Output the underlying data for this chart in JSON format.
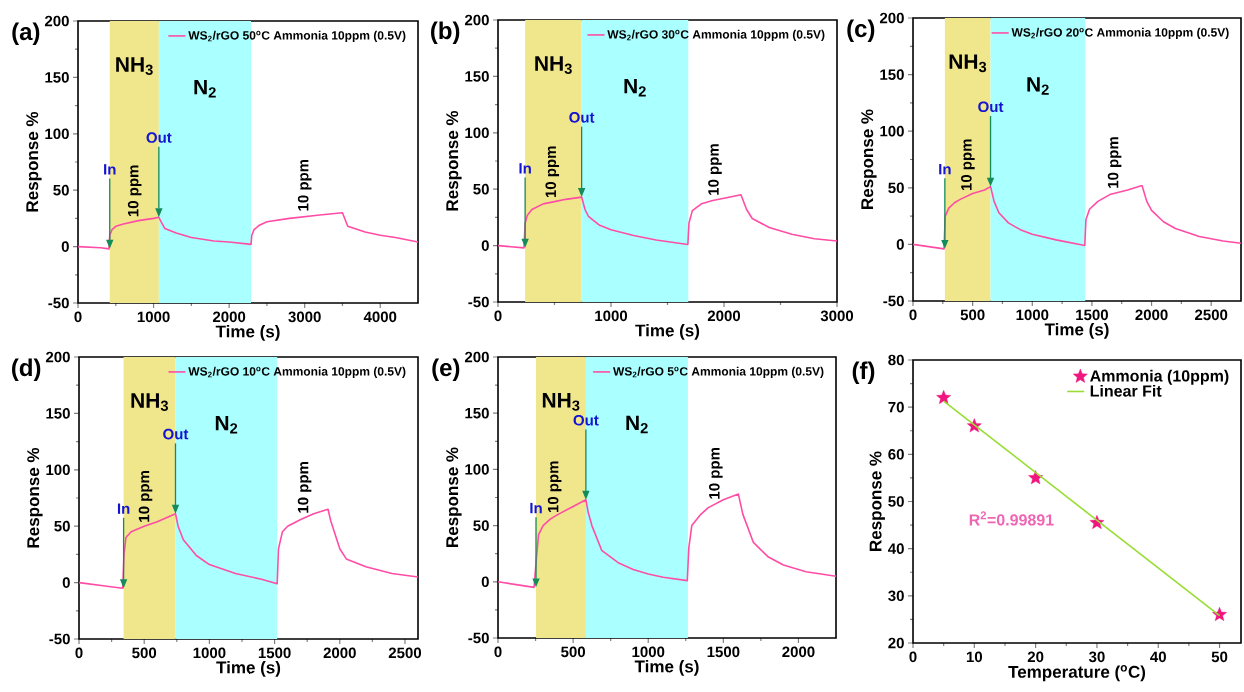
{
  "chart_data": [
    {
      "type": "line",
      "title": "(a)",
      "xlabel": "Time (s)",
      "ylabel": "Response %",
      "xlim": [
        0,
        4500
      ],
      "ylim": [
        -50,
        200
      ],
      "xticks": [
        0,
        1000,
        2000,
        3000,
        4000
      ],
      "yticks": [
        -50,
        0,
        50,
        100,
        150,
        200
      ],
      "legend": "top right",
      "series": [
        {
          "name": "WS$_{2}$/rGO 50$^{o}$C Ammonia 10ppm (0.5V)",
          "color": "#ff4da6",
          "x": [
            0,
            300,
            410,
            420,
            450,
            500,
            600,
            800,
            1000,
            1070,
            1100,
            1150,
            1300,
            1500,
            1800,
            2000,
            2290,
            2300,
            2330,
            2400,
            2500,
            2800,
            3200,
            3500,
            3570,
            3800,
            4000,
            4200,
            4500
          ],
          "values": [
            0,
            -1,
            -2,
            10,
            15,
            18,
            20,
            23,
            25,
            26,
            22,
            16,
            12,
            8,
            5,
            4,
            2,
            10,
            15,
            19,
            22,
            25,
            28,
            30,
            18,
            13,
            10,
            8,
            4
          ]
        }
      ],
      "bands": [
        {
          "axis": "x",
          "from": 420,
          "to": 1070,
          "label": "NH$_{3}$",
          "color": "#f0e68c"
        },
        {
          "axis": "x",
          "from": 1070,
          "to": 2290,
          "label": "N$_{2}$",
          "color": "#aaffff"
        }
      ],
      "annotations": [
        {
          "text": "In",
          "x": 420,
          "y": -2
        },
        {
          "text": "Out",
          "x": 1070,
          "y": 26
        },
        {
          "text": "10 ppm",
          "x": 750,
          "y": 23
        },
        {
          "text": "10 ppm",
          "x": 3000,
          "y": 28
        }
      ]
    },
    {
      "type": "line",
      "title": "(b)",
      "xlabel": "Time (s)",
      "ylabel": "Response %",
      "xlim": [
        0,
        3000
      ],
      "ylim": [
        -50,
        200
      ],
      "xticks": [
        0,
        1000,
        2000,
        3000
      ],
      "yticks": [
        -50,
        0,
        50,
        100,
        150,
        200
      ],
      "legend": "top right",
      "series": [
        {
          "name": "WS$_{2}$/rGO 30$^{o}$C Ammonia 10ppm (0.5V)",
          "color": "#ff4da6",
          "x": [
            0,
            230,
            240,
            260,
            300,
            400,
            500,
            600,
            740,
            770,
            800,
            900,
            1000,
            1200,
            1400,
            1680,
            1690,
            1720,
            1800,
            1900,
            2000,
            2150,
            2200,
            2250,
            2400,
            2600,
            2800,
            3000
          ],
          "values": [
            0,
            -2,
            20,
            27,
            32,
            37,
            39,
            41,
            43,
            32,
            26,
            18,
            14,
            9,
            5,
            1,
            20,
            31,
            37,
            40,
            42,
            45,
            32,
            24,
            16,
            10,
            6,
            4
          ]
        }
      ],
      "bands": [
        {
          "axis": "x",
          "from": 240,
          "to": 740,
          "label": "NH$_{3}$",
          "color": "#f0e68c"
        },
        {
          "axis": "x",
          "from": 740,
          "to": 1684,
          "label": "N$_{2}$",
          "color": "#aaffff"
        }
      ],
      "annotations": [
        {
          "text": "In",
          "x": 240,
          "y": -2
        },
        {
          "text": "Out",
          "x": 740,
          "y": 43
        },
        {
          "text": "10 ppm",
          "x": 480,
          "y": 39
        },
        {
          "text": "10 ppm",
          "x": 1920,
          "y": 41
        }
      ]
    },
    {
      "type": "line",
      "title": "(c)",
      "xlabel": "Time (s)",
      "ylabel": "Response %",
      "xlim": [
        0,
        2750
      ],
      "ylim": [
        -50,
        200
      ],
      "xticks": [
        0,
        500,
        1000,
        1500,
        2000,
        2500
      ],
      "yticks": [
        -50,
        0,
        50,
        100,
        150,
        200
      ],
      "legend": "top right",
      "series": [
        {
          "name": "WS$_{2}$/rGO 20$^{o}$C Ammonia 10ppm (0.5V)",
          "color": "#ff4da6",
          "x": [
            0,
            260,
            270,
            300,
            350,
            400,
            500,
            600,
            650,
            680,
            720,
            800,
            900,
            1000,
            1200,
            1440,
            1450,
            1480,
            1550,
            1650,
            1800,
            1920,
            1960,
            2000,
            2100,
            2200,
            2400,
            2600,
            2750
          ],
          "values": [
            0,
            -4,
            25,
            32,
            37,
            40,
            45,
            48,
            51,
            38,
            28,
            19,
            13,
            9,
            4,
            -1,
            22,
            31,
            38,
            44,
            48,
            52,
            38,
            30,
            20,
            14,
            7,
            3,
            1
          ]
        }
      ],
      "bands": [
        {
          "axis": "x",
          "from": 267,
          "to": 650,
          "label": "NH$_{3}$",
          "color": "#f0e68c"
        },
        {
          "axis": "x",
          "from": 650,
          "to": 1444,
          "label": "N$_{2}$",
          "color": "#aaffff"
        }
      ],
      "annotations": [
        {
          "text": "In",
          "x": 267,
          "y": -4
        },
        {
          "text": "Out",
          "x": 650,
          "y": 51
        },
        {
          "text": "10 ppm",
          "x": 460,
          "y": 44
        },
        {
          "text": "10 ppm",
          "x": 1690,
          "y": 46
        }
      ]
    },
    {
      "type": "line",
      "title": "(d)",
      "xlabel": "Time (s)",
      "ylabel": "Response %",
      "xlim": [
        0,
        2600
      ],
      "ylim": [
        -50,
        200
      ],
      "xticks": [
        0,
        500,
        1000,
        1500,
        2000,
        2500
      ],
      "yticks": [
        -50,
        0,
        50,
        100,
        150,
        200
      ],
      "legend": "top right",
      "series": [
        {
          "name": "WS$_{2}$/rGO 10$^{o}$C Ammonia 10ppm (0.5V)",
          "color": "#ff4da6",
          "x": [
            0,
            200,
            335,
            345,
            360,
            400,
            500,
            600,
            740,
            760,
            800,
            900,
            1000,
            1200,
            1400,
            1520,
            1530,
            1560,
            1600,
            1700,
            1800,
            1910,
            1930,
            2000,
            2050,
            2200,
            2400,
            2600
          ],
          "values": [
            0,
            -3,
            -5,
            25,
            40,
            45,
            50,
            54,
            61,
            50,
            38,
            24,
            16,
            8,
            3,
            -1,
            30,
            45,
            50,
            56,
            61,
            65,
            55,
            30,
            21,
            14,
            8,
            5
          ]
        }
      ],
      "bands": [
        {
          "axis": "x",
          "from": 342,
          "to": 740,
          "label": "NH$_{3}$",
          "color": "#f0e68c"
        },
        {
          "axis": "x",
          "from": 740,
          "to": 1520,
          "label": "N$_{2}$",
          "color": "#aaffff"
        }
      ],
      "annotations": [
        {
          "text": "In",
          "x": 342,
          "y": -5
        },
        {
          "text": "Out",
          "x": 740,
          "y": 61
        },
        {
          "text": "10 ppm",
          "x": 510,
          "y": 50
        },
        {
          "text": "10 ppm",
          "x": 1730,
          "y": 58
        }
      ]
    },
    {
      "type": "line",
      "title": "(e)",
      "xlabel": "Time (s)",
      "ylabel": "Response %",
      "xlim": [
        0,
        2250
      ],
      "ylim": [
        -50,
        200
      ],
      "xticks": [
        0,
        500,
        1000,
        1500,
        2000
      ],
      "yticks": [
        -50,
        0,
        50,
        100,
        150,
        200
      ],
      "legend": "top right",
      "series": [
        {
          "name": "WS$_{2}$/rGO 5$^{o}$C Ammonia 10ppm (0.5V)",
          "color": "#ff4da6",
          "x": [
            0,
            240,
            255,
            270,
            300,
            350,
            400,
            500,
            585,
            600,
            625,
            690,
            800,
            900,
            1000,
            1100,
            1260,
            1270,
            1290,
            1350,
            1400,
            1500,
            1600,
            1630,
            1700,
            1800,
            1900,
            2050,
            2250
          ],
          "values": [
            0,
            -5,
            20,
            42,
            50,
            56,
            60,
            67,
            73,
            62,
            50,
            28,
            17,
            11,
            7,
            4,
            1,
            30,
            50,
            60,
            66,
            73,
            78,
            60,
            35,
            22,
            15,
            9,
            5
          ]
        }
      ],
      "bands": [
        {
          "axis": "x",
          "from": 253,
          "to": 585,
          "label": "NH$_{3}$",
          "color": "#f0e68c"
        },
        {
          "axis": "x",
          "from": 585,
          "to": 1264,
          "label": "N$_{2}$",
          "color": "#aaffff"
        }
      ],
      "annotations": [
        {
          "text": "In",
          "x": 253,
          "y": -5
        },
        {
          "text": "Out",
          "x": 585,
          "y": 73
        },
        {
          "text": "10 ppm",
          "x": 377,
          "y": 58
        },
        {
          "text": "10 ppm",
          "x": 1450,
          "y": 70
        }
      ]
    },
    {
      "type": "scatter",
      "title": "(f)",
      "xlabel": "Temperature ($^{o}$C)",
      "ylabel": "Response %",
      "xlim": [
        0,
        53.5
      ],
      "ylim": [
        20,
        80
      ],
      "xticks": [
        0,
        10,
        20,
        30,
        40,
        50
      ],
      "yticks": [
        20,
        30,
        40,
        50,
        60,
        70,
        80
      ],
      "legend": "top right",
      "series": [
        {
          "name": "Ammonia (10ppm)",
          "color": "#f0157f",
          "marker": "star",
          "x": [
            5,
            10,
            20,
            30,
            50
          ],
          "values": [
            72,
            66,
            55,
            45.5,
            26
          ]
        },
        {
          "name": "Linear Fit",
          "type": "line",
          "color": "#99dd33",
          "x": [
            5,
            50
          ],
          "values": [
            71.3,
            25.8
          ]
        }
      ],
      "annotations": [
        "R$^{2}$=0.99891"
      ]
    }
  ]
}
